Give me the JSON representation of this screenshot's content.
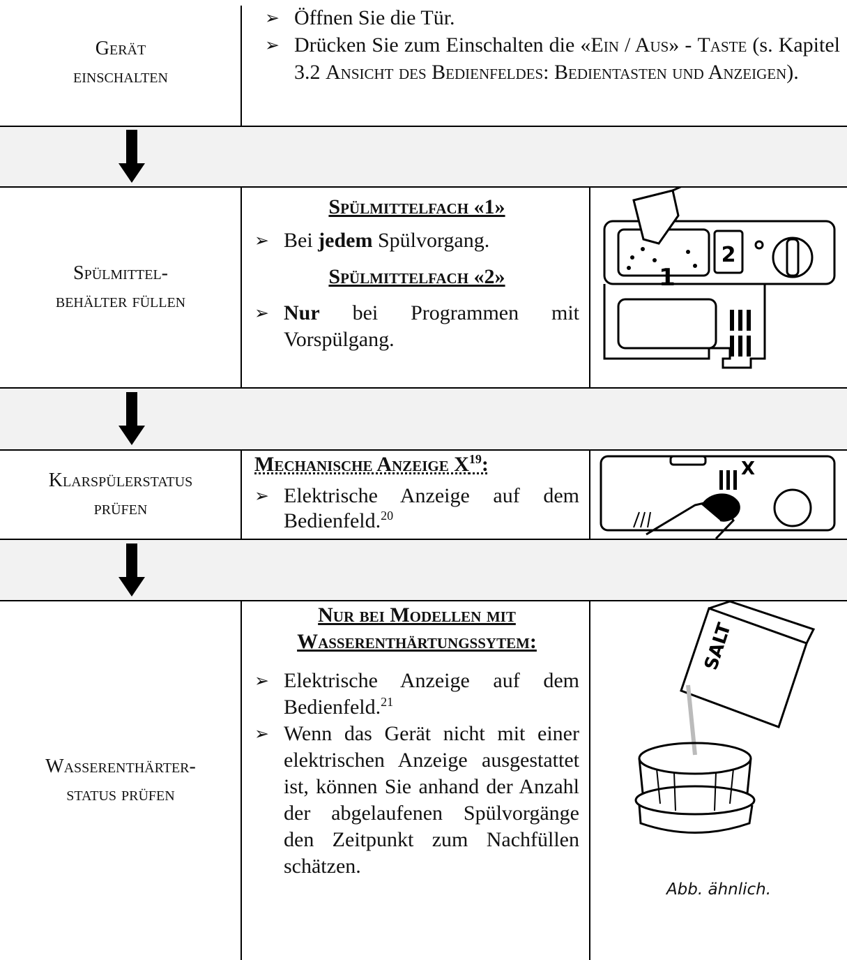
{
  "steps": [
    {
      "label": [
        "Gerät",
        "einschalten"
      ],
      "bullets": [
        [
          "Öffnen Sie die Tür."
        ],
        [
          "Drücken Sie zum Einschalten die «",
          "Ein / Aus",
          "» - ",
          "Taste",
          " (s. Kapitel 3.2 ",
          "Ansicht des Bedienfeldes: Bedientasten und Anzeigen",
          ")."
        ]
      ]
    },
    {
      "label": [
        "Spülmittel-",
        "behälter füllen"
      ],
      "headings": [
        "Spülmittelfach «1»",
        "Spülmittelfach «2»"
      ],
      "bullets": [
        [
          "Bei ",
          "jedem",
          " Spülvorgang."
        ],
        [
          "Nur",
          " bei Programmen mit Vorspülgang."
        ]
      ],
      "figure": {
        "labels": [
          "1",
          "2"
        ]
      }
    },
    {
      "label": [
        "Klarspülerstatus",
        "prüfen"
      ],
      "heading": {
        "text": "Mechanische Anzeige X",
        "note": "19",
        "end": ":"
      },
      "bullets": [
        {
          "text": "Elektrische Anzeige auf dem Bedienfeld.",
          "note": "20"
        }
      ],
      "figure": {
        "labels": [
          "X"
        ]
      }
    },
    {
      "label": [
        "Wasserenthärter-",
        "status prüfen"
      ],
      "heading": [
        "Nur bei Modellen mit",
        "Wasserenthärtungssytem:"
      ],
      "bullets": [
        {
          "text": "Elektrische Anzeige auf dem Bedienfeld.",
          "note": "21"
        },
        {
          "text": "Wenn das Gerät nicht mit einer elektrischen Anzeige ausgestattet ist, können Sie anhand der Anzahl der abgelaufenen Spülvorgänge den Zeitpunkt zum Nachfüllen schätzen."
        }
      ],
      "figure": {
        "labels": [
          "SALT"
        ],
        "caption": "Abb. ähnlich."
      }
    }
  ]
}
